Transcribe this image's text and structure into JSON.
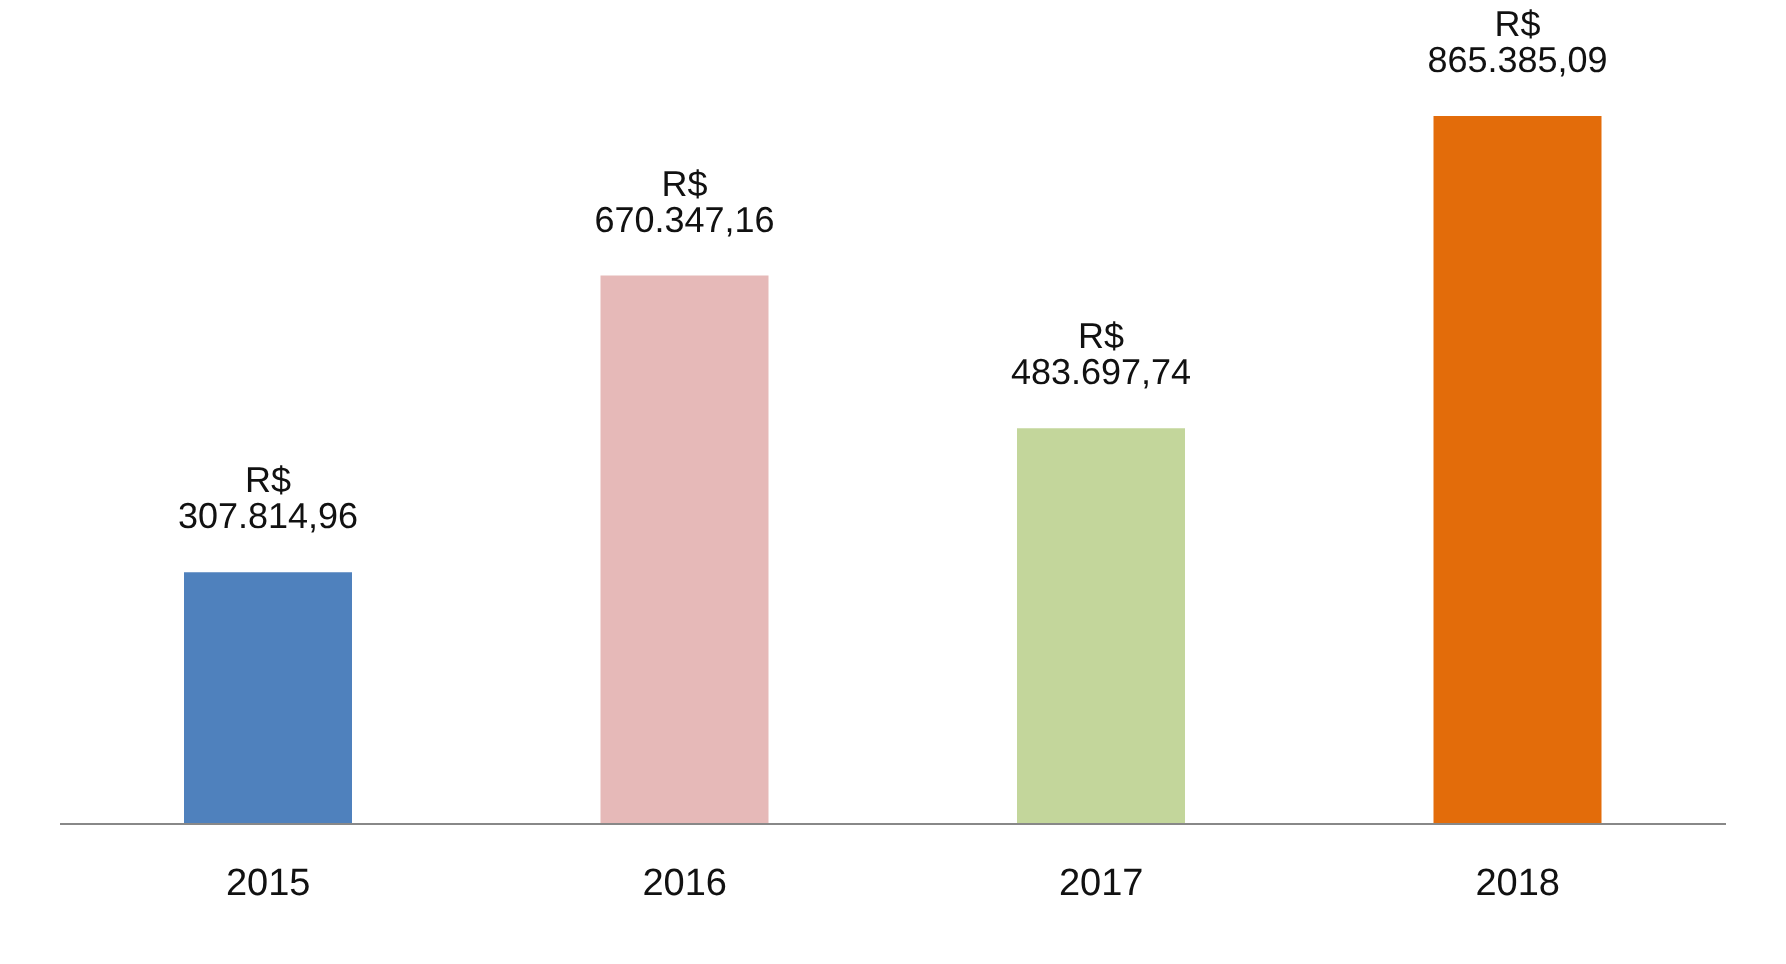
{
  "chart_data": {
    "type": "bar",
    "categories": [
      "2015",
      "2016",
      "2017",
      "2018"
    ],
    "values": [
      307814.96,
      670347.16,
      483697.74,
      865385.09
    ],
    "colors": [
      "#4f81bd",
      "#e6b9b8",
      "#c3d69b",
      "#e36c0a"
    ],
    "value_labels": [
      "R$ 307.814,96",
      "R$ 670.347,16",
      "R$ 483.697,74",
      "R$ 865.385,09"
    ]
  }
}
